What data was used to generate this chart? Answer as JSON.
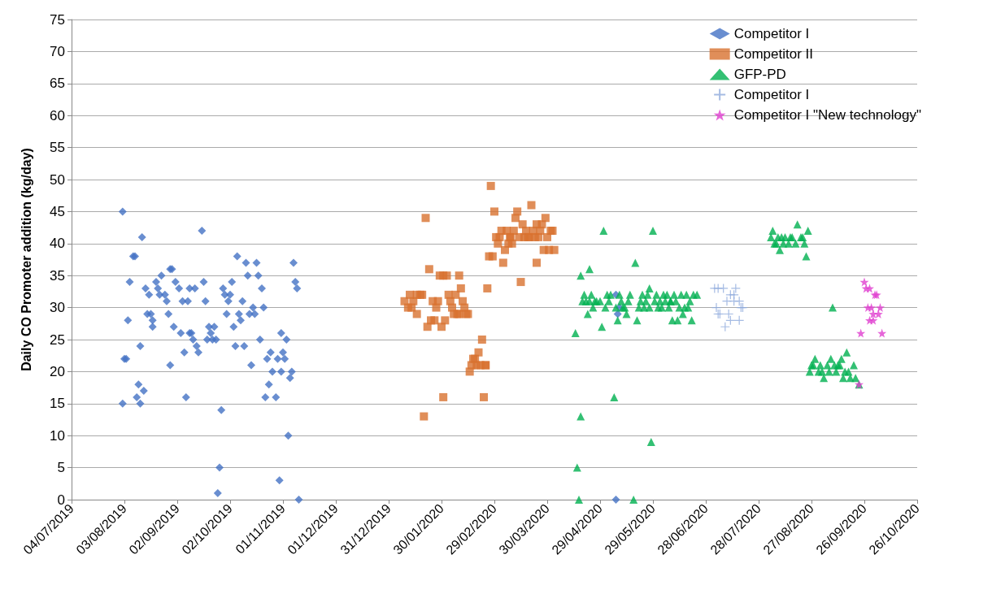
{
  "chart_data": {
    "type": "scatter",
    "ylabel": "Daily CO Promoter addition (kg/day)",
    "legend": "top right",
    "grid": "y",
    "xlim": [
      "2019-07-04",
      "2020-10-26"
    ],
    "xticks": [
      {
        "value": "2019-07-04",
        "label": "04/07/2019"
      },
      {
        "value": "2019-08-03",
        "label": "03/08/2019"
      },
      {
        "value": "2019-09-02",
        "label": "02/09/2019"
      },
      {
        "value": "2019-10-02",
        "label": "02/10/2019"
      },
      {
        "value": "2019-11-01",
        "label": "01/11/2019"
      },
      {
        "value": "2019-12-01",
        "label": "01/12/2019"
      },
      {
        "value": "2019-12-31",
        "label": "31/12/2019"
      },
      {
        "value": "2020-01-30",
        "label": "30/01/2020"
      },
      {
        "value": "2020-02-29",
        "label": "29/02/2020"
      },
      {
        "value": "2020-03-30",
        "label": "30/03/2020"
      },
      {
        "value": "2020-04-29",
        "label": "29/04/2020"
      },
      {
        "value": "2020-05-29",
        "label": "29/05/2020"
      },
      {
        "value": "2020-06-28",
        "label": "28/06/2020"
      },
      {
        "value": "2020-07-28",
        "label": "28/07/2020"
      },
      {
        "value": "2020-08-27",
        "label": "27/08/2020"
      },
      {
        "value": "2020-09-26",
        "label": "26/09/2020"
      },
      {
        "value": "2020-10-26",
        "label": "26/10/2020"
      }
    ],
    "ylim": [
      0,
      75
    ],
    "yticks": [
      0,
      5,
      10,
      15,
      20,
      25,
      30,
      35,
      40,
      45,
      50,
      55,
      60,
      65,
      70,
      75
    ],
    "series": [
      {
        "name": "Competitor I",
        "color": "#4472c4",
        "marker": "diamond",
        "x": [
          "2019-08-02",
          "2019-08-02",
          "2019-08-03",
          "2019-08-04",
          "2019-08-05",
          "2019-08-06",
          "2019-08-08",
          "2019-08-09",
          "2019-08-10",
          "2019-08-11",
          "2019-08-12",
          "2019-08-12",
          "2019-08-13",
          "2019-08-14",
          "2019-08-15",
          "2019-08-16",
          "2019-08-17",
          "2019-08-18",
          "2019-08-19",
          "2019-08-19",
          "2019-08-21",
          "2019-08-22",
          "2019-08-23",
          "2019-08-24",
          "2019-08-26",
          "2019-08-27",
          "2019-08-28",
          "2019-08-29",
          "2019-08-29",
          "2019-08-30",
          "2019-08-31",
          "2019-09-01",
          "2019-09-03",
          "2019-09-04",
          "2019-09-05",
          "2019-09-06",
          "2019-09-07",
          "2019-09-08",
          "2019-09-09",
          "2019-09-09",
          "2019-09-10",
          "2019-09-11",
          "2019-09-12",
          "2019-09-13",
          "2019-09-14",
          "2019-09-16",
          "2019-09-17",
          "2019-09-18",
          "2019-09-19",
          "2019-09-20",
          "2019-09-21",
          "2019-09-22",
          "2019-09-23",
          "2019-09-24",
          "2019-09-25",
          "2019-09-26",
          "2019-09-27",
          "2019-09-28",
          "2019-09-29",
          "2019-09-30",
          "2019-10-01",
          "2019-10-02",
          "2019-10-03",
          "2019-10-04",
          "2019-10-05",
          "2019-10-06",
          "2019-10-07",
          "2019-10-08",
          "2019-10-09",
          "2019-10-10",
          "2019-10-11",
          "2019-10-12",
          "2019-10-13",
          "2019-10-14",
          "2019-10-15",
          "2019-10-16",
          "2019-10-17",
          "2019-10-18",
          "2019-10-19",
          "2019-10-20",
          "2019-10-21",
          "2019-10-22",
          "2019-10-23",
          "2019-10-24",
          "2019-10-25",
          "2019-10-26",
          "2019-10-28",
          "2019-10-29",
          "2019-10-30",
          "2019-10-31",
          "2019-10-31",
          "2019-11-01",
          "2019-11-02",
          "2019-11-03",
          "2019-11-04",
          "2019-11-05",
          "2019-11-06",
          "2019-11-07",
          "2019-11-08",
          "2019-11-09",
          "2019-11-10",
          "2020-05-08",
          "2020-05-08",
          "2020-05-09",
          "2020-05-10"
        ],
        "values": [
          45,
          15,
          22,
          22,
          28,
          34,
          38,
          38,
          16,
          18,
          24,
          15,
          41,
          17,
          33,
          29,
          32,
          29,
          28,
          27,
          34,
          33,
          32,
          35,
          32,
          31,
          29,
          21,
          36,
          36,
          27,
          34,
          33,
          26,
          31,
          23,
          16,
          31,
          26,
          33,
          26,
          25,
          33,
          24,
          23,
          42,
          34,
          31,
          25,
          27,
          26,
          25,
          27,
          25,
          1,
          5,
          14,
          33,
          32,
          29,
          31,
          32,
          34,
          27,
          24,
          38,
          29,
          28,
          31,
          24,
          37,
          35,
          29,
          21,
          30,
          29,
          37,
          35,
          25,
          33,
          30,
          16,
          22,
          18,
          23,
          20,
          16,
          22,
          3,
          26,
          20,
          23,
          22,
          25,
          10,
          19,
          20,
          37,
          34,
          33,
          0,
          0,
          32,
          29,
          30
        ]
      },
      {
        "name": "Competitor II",
        "color": "#d87230",
        "marker": "square",
        "x": [
          "2020-01-09",
          "2020-01-11",
          "2020-01-12",
          "2020-01-13",
          "2020-01-14",
          "2020-01-16",
          "2020-01-16",
          "2020-01-18",
          "2020-01-19",
          "2020-01-20",
          "2020-01-21",
          "2020-01-22",
          "2020-01-23",
          "2020-01-24",
          "2020-01-25",
          "2020-01-26",
          "2020-01-27",
          "2020-01-28",
          "2020-01-29",
          "2020-01-30",
          "2020-01-31",
          "2020-01-31",
          "2020-02-01",
          "2020-02-02",
          "2020-02-03",
          "2020-02-04",
          "2020-02-05",
          "2020-02-06",
          "2020-02-07",
          "2020-02-08",
          "2020-02-09",
          "2020-02-09",
          "2020-02-10",
          "2020-02-11",
          "2020-02-12",
          "2020-02-13",
          "2020-02-14",
          "2020-02-15",
          "2020-02-16",
          "2020-02-17",
          "2020-02-18",
          "2020-02-19",
          "2020-02-20",
          "2020-02-21",
          "2020-02-22",
          "2020-02-23",
          "2020-02-24",
          "2020-02-24",
          "2020-02-25",
          "2020-02-26",
          "2020-02-27",
          "2020-02-28",
          "2020-02-29",
          "2020-03-01",
          "2020-03-02",
          "2020-03-03",
          "2020-03-04",
          "2020-03-05",
          "2020-03-06",
          "2020-03-07",
          "2020-03-08",
          "2020-03-09",
          "2020-03-09",
          "2020-03-10",
          "2020-03-11",
          "2020-03-12",
          "2020-03-13",
          "2020-03-14",
          "2020-03-15",
          "2020-03-16",
          "2020-03-17",
          "2020-03-18",
          "2020-03-19",
          "2020-03-20",
          "2020-03-21",
          "2020-03-22",
          "2020-03-23",
          "2020-03-24",
          "2020-03-24",
          "2020-03-25",
          "2020-03-26",
          "2020-03-27",
          "2020-03-28",
          "2020-03-29",
          "2020-03-30",
          "2020-03-31",
          "2020-04-01",
          "2020-04-02",
          "2020-04-03"
        ],
        "values": [
          31,
          30,
          32,
          30,
          31,
          29,
          32,
          32,
          32,
          13,
          44,
          27,
          36,
          28,
          31,
          28,
          30,
          31,
          35,
          27,
          16,
          35,
          28,
          35,
          32,
          31,
          30,
          29,
          32,
          29,
          35,
          29,
          33,
          31,
          30,
          29,
          29,
          20,
          21,
          22,
          22,
          21,
          23,
          21,
          25,
          16,
          21,
          21,
          33,
          38,
          49,
          38,
          45,
          41,
          40,
          41,
          42,
          37,
          39,
          42,
          40,
          41,
          41,
          40,
          42,
          44,
          45,
          41,
          34,
          43,
          41,
          42,
          41,
          41,
          46,
          42,
          41,
          43,
          37,
          41,
          42,
          43,
          39,
          44,
          41,
          39,
          42,
          42,
          39
        ]
      },
      {
        "name": "GFP-PD",
        "color": "#00b050",
        "marker": "triangle",
        "x": [
          "2020-04-15",
          "2020-04-16",
          "2020-04-17",
          "2020-04-18",
          "2020-04-18",
          "2020-04-19",
          "2020-04-20",
          "2020-04-21",
          "2020-04-22",
          "2020-04-23",
          "2020-04-23",
          "2020-04-24",
          "2020-04-25",
          "2020-04-26",
          "2020-04-27",
          "2020-04-29",
          "2020-04-30",
          "2020-05-01",
          "2020-05-02",
          "2020-05-03",
          "2020-05-04",
          "2020-05-05",
          "2020-05-07",
          "2020-05-08",
          "2020-05-09",
          "2020-05-10",
          "2020-05-11",
          "2020-05-12",
          "2020-05-13",
          "2020-05-14",
          "2020-05-15",
          "2020-05-16",
          "2020-05-18",
          "2020-05-19",
          "2020-05-20",
          "2020-05-21",
          "2020-05-22",
          "2020-05-23",
          "2020-05-24",
          "2020-05-25",
          "2020-05-26",
          "2020-05-27",
          "2020-05-27",
          "2020-05-28",
          "2020-05-29",
          "2020-05-30",
          "2020-05-31",
          "2020-06-01",
          "2020-06-02",
          "2020-06-03",
          "2020-06-04",
          "2020-06-05",
          "2020-06-06",
          "2020-06-07",
          "2020-06-08",
          "2020-06-08",
          "2020-06-09",
          "2020-06-10",
          "2020-06-11",
          "2020-06-12",
          "2020-06-13",
          "2020-06-14",
          "2020-06-15",
          "2020-06-16",
          "2020-06-17",
          "2020-06-18",
          "2020-06-19",
          "2020-06-20",
          "2020-06-21",
          "2020-06-23",
          "2020-08-04",
          "2020-08-05",
          "2020-08-06",
          "2020-08-07",
          "2020-08-08",
          "2020-08-09",
          "2020-08-10",
          "2020-08-11",
          "2020-08-12",
          "2020-08-14",
          "2020-08-15",
          "2020-08-16",
          "2020-08-18",
          "2020-08-19",
          "2020-08-21",
          "2020-08-22",
          "2020-08-23",
          "2020-08-24",
          "2020-08-25",
          "2020-09-08",
          "2020-08-26",
          "2020-08-27",
          "2020-08-28",
          "2020-08-29",
          "2020-08-31",
          "2020-09-01",
          "2020-09-02",
          "2020-09-03",
          "2020-09-05",
          "2020-09-06",
          "2020-09-07",
          "2020-09-09",
          "2020-09-10",
          "2020-09-11",
          "2020-09-12",
          "2020-09-13",
          "2020-09-14",
          "2020-09-15",
          "2020-09-16",
          "2020-09-17",
          "2020-09-18",
          "2020-09-20",
          "2020-09-21",
          "2020-09-23"
        ],
        "values": [
          26,
          5,
          0,
          13,
          35,
          31,
          32,
          31,
          29,
          36,
          31,
          32,
          30,
          31,
          31,
          31,
          27,
          42,
          30,
          32,
          31,
          32,
          16,
          30,
          28,
          32,
          31,
          30,
          30,
          29,
          31,
          32,
          0,
          37,
          28,
          30,
          31,
          32,
          30,
          31,
          32,
          33,
          30,
          9,
          42,
          31,
          32,
          30,
          31,
          30,
          32,
          31,
          32,
          30,
          31,
          31,
          28,
          32,
          31,
          28,
          30,
          32,
          29,
          30,
          32,
          30,
          31,
          28,
          32,
          32,
          41,
          42,
          40,
          40,
          41,
          39,
          41,
          40,
          41,
          40,
          41,
          41,
          40,
          43,
          41,
          41,
          40,
          38,
          42,
          30,
          20,
          21,
          21,
          22,
          20,
          21,
          20,
          19,
          21,
          20,
          22,
          21,
          20,
          21,
          21,
          22,
          19,
          20,
          23,
          20,
          19,
          21,
          19,
          18
        ]
      },
      {
        "name": "Competitor I",
        "color": "#8faadc",
        "marker": "cross",
        "x": [
          "2020-07-03",
          "2020-07-04",
          "2020-07-05",
          "2020-07-05",
          "2020-07-06",
          "2020-07-08",
          "2020-07-09",
          "2020-07-10",
          "2020-07-11",
          "2020-07-12",
          "2020-07-12",
          "2020-07-14",
          "2020-07-14",
          "2020-07-15",
          "2020-07-17",
          "2020-07-17",
          "2020-07-18",
          "2020-07-19"
        ],
        "values": [
          33,
          30,
          29,
          33,
          29,
          33,
          27,
          31,
          29,
          28,
          32,
          31,
          32,
          33,
          31,
          28,
          30,
          30
        ]
      },
      {
        "name": "Competitor I \"New technology\"",
        "color": "#e040d0",
        "marker": "star",
        "x": [
          "2020-09-23",
          "2020-09-24",
          "2020-09-26",
          "2020-09-27",
          "2020-09-28",
          "2020-09-29",
          "2020-09-29",
          "2020-09-30",
          "2020-10-01",
          "2020-10-01",
          "2020-10-02",
          "2020-10-03",
          "2020-10-04",
          "2020-10-05",
          "2020-10-06"
        ],
        "values": [
          18,
          26,
          34,
          33,
          30,
          33,
          28,
          30,
          29,
          28,
          32,
          32,
          29,
          30,
          26
        ]
      }
    ]
  }
}
